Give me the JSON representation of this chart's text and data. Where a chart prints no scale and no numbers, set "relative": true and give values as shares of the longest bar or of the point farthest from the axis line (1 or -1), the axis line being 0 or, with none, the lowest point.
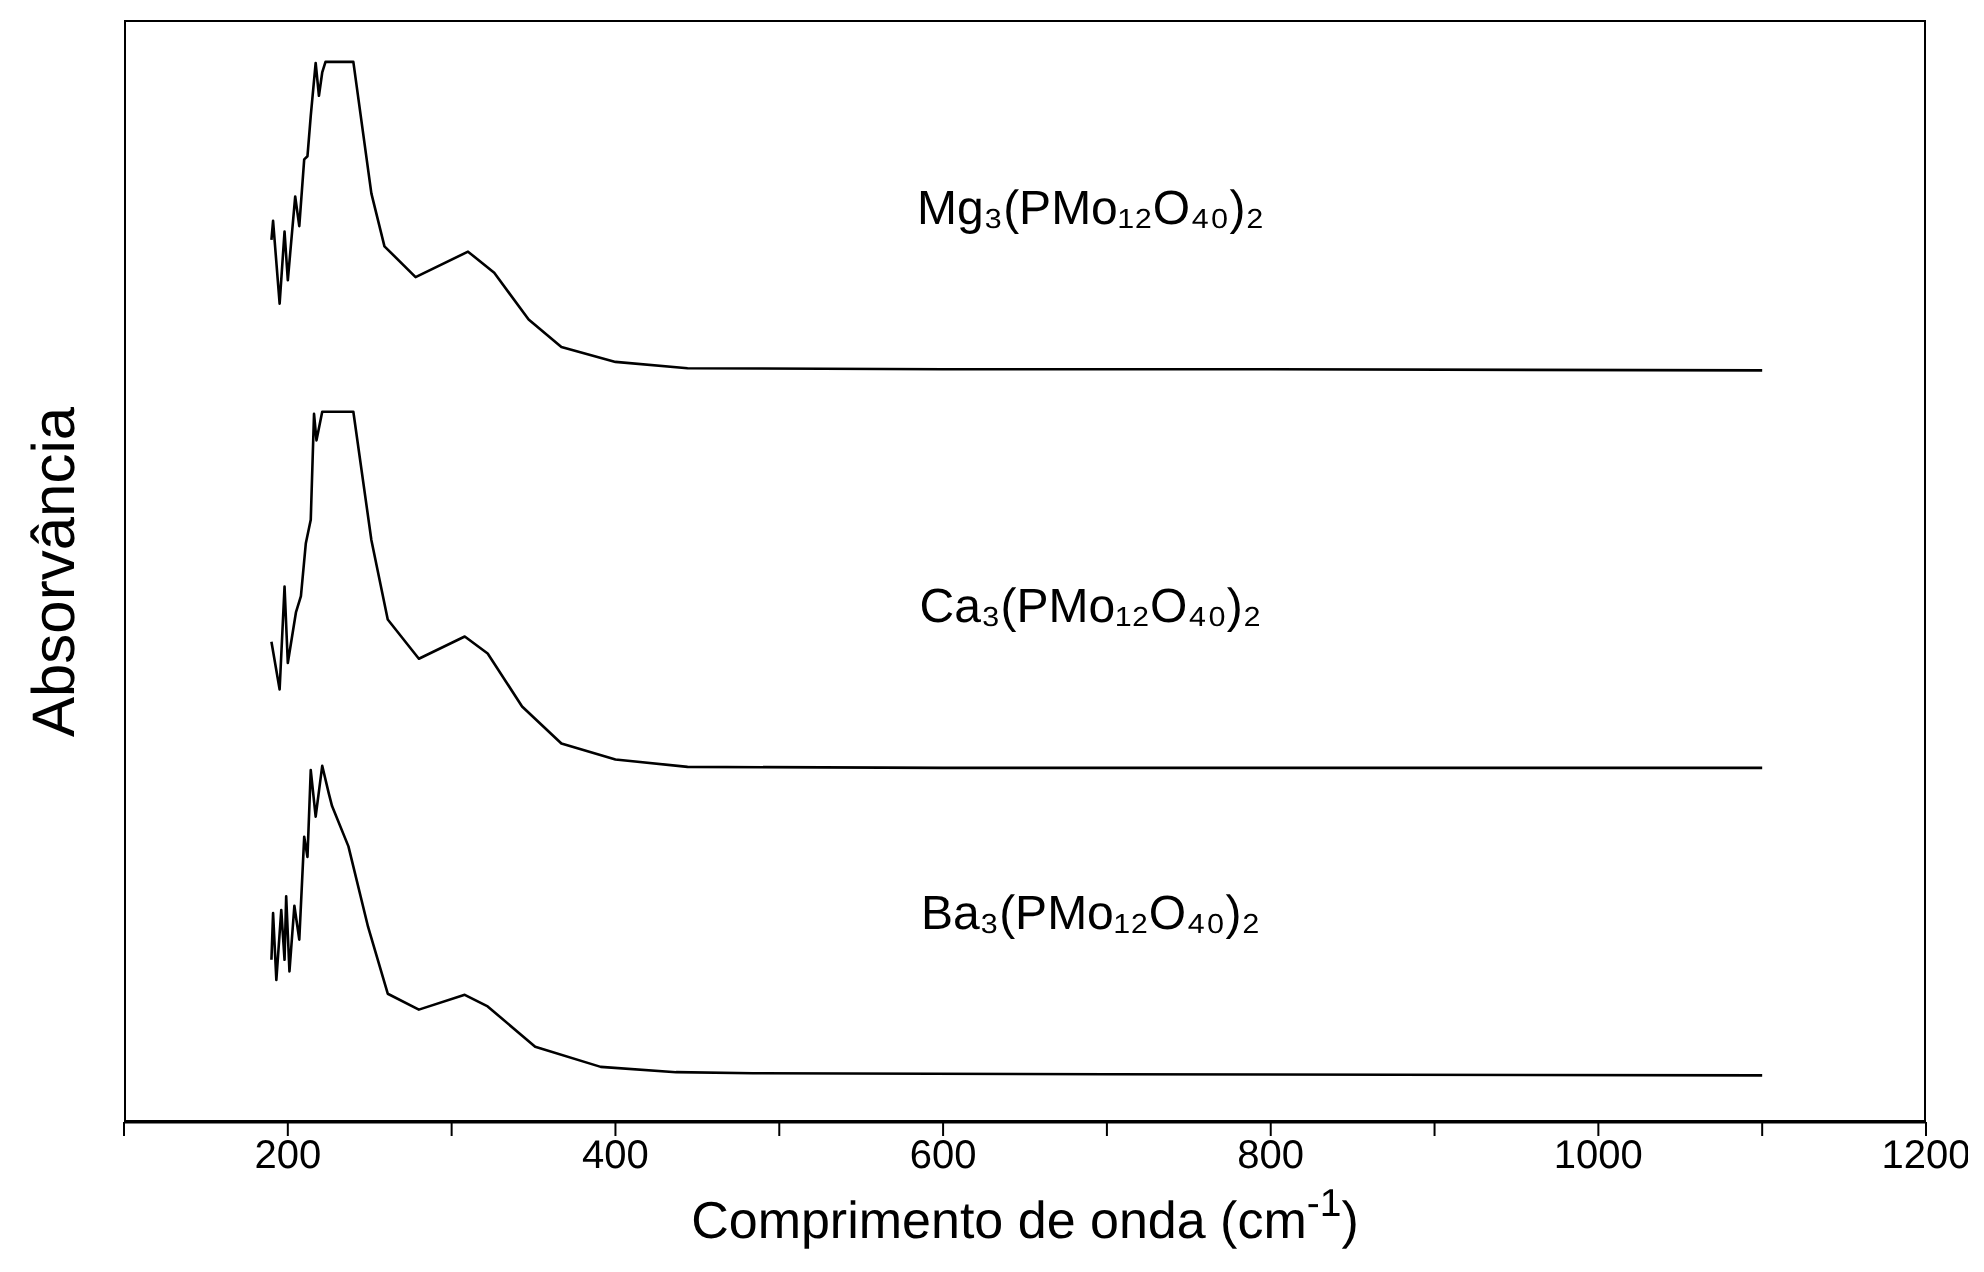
{
  "chart_data": {
    "type": "line",
    "relative": true,
    "xlabel": "Comprimento de onda (cm$^{-1}$)",
    "ylabel": "Absorvância",
    "xlim": [
      100,
      1200
    ],
    "xticks": [
      {
        "value": 100,
        "label": null
      },
      200,
      {
        "value": 300,
        "label": null
      },
      400,
      {
        "value": 500,
        "label": null
      },
      600,
      {
        "value": 700,
        "label": null
      },
      800,
      {
        "value": 900,
        "label": null
      },
      1000,
      {
        "value": 1100,
        "label": null
      },
      1200
    ],
    "marker": "none",
    "series": [
      {
        "name": "Mg₃(PMo₁₂O₄₀)₂",
        "color": "#000000",
        "x": [
          190,
          191,
          195,
          198,
          200,
          204.5,
          207,
          210,
          212,
          214,
          217,
          219,
          221,
          223,
          240,
          251,
          259,
          278,
          310,
          326,
          347,
          367,
          400,
          444,
          600,
          800,
          1100
        ],
        "values": [
          0.832,
          0.85,
          0.772,
          0.84,
          0.794,
          0.873,
          0.845,
          0.908,
          0.911,
          0.949,
          0.999,
          0.968,
          0.99,
          1,
          1,
          0.876,
          0.826,
          0.797,
          0.821,
          0.801,
          0.757,
          0.731,
          0.717,
          0.711,
          0.71,
          0.71,
          0.709
        ]
      },
      {
        "name": "Ca₃(PMo₁₂O₄₀)₂",
        "color": "#000000",
        "x": [
          190,
          195,
          198,
          200,
          205,
          208,
          211,
          214,
          216,
          217.5,
          221,
          240,
          251,
          261,
          280,
          308,
          322,
          343,
          367,
          400,
          444,
          600,
          800,
          1100
        ],
        "values": [
          0.453,
          0.408,
          0.505,
          0.433,
          0.481,
          0.496,
          0.546,
          0.568,
          0.668,
          0.643,
          0.67,
          0.67,
          0.549,
          0.474,
          0.437,
          0.458,
          0.442,
          0.392,
          0.357,
          0.342,
          0.335,
          0.334,
          0.334,
          0.334
        ]
      },
      {
        "name": "Ba₃(PMo₁₂O₄₀)₂",
        "color": "#000000",
        "x": [
          190,
          191,
          193,
          196,
          198,
          199,
          201,
          204,
          207,
          210,
          212,
          214,
          217,
          221,
          225,
          227,
          237,
          249,
          261,
          280,
          308,
          322,
          351,
          391,
          437,
          484,
          700,
          1100
        ],
        "values": [
          0.153,
          0.197,
          0.134,
          0.2,
          0.153,
          0.213,
          0.142,
          0.204,
          0.172,
          0.269,
          0.25,
          0.332,
          0.288,
          0.336,
          0.31,
          0.298,
          0.26,
          0.184,
          0.121,
          0.106,
          0.12,
          0.109,
          0.071,
          0.052,
          0.047,
          0.046,
          0.045,
          0.044
        ]
      }
    ]
  }
}
